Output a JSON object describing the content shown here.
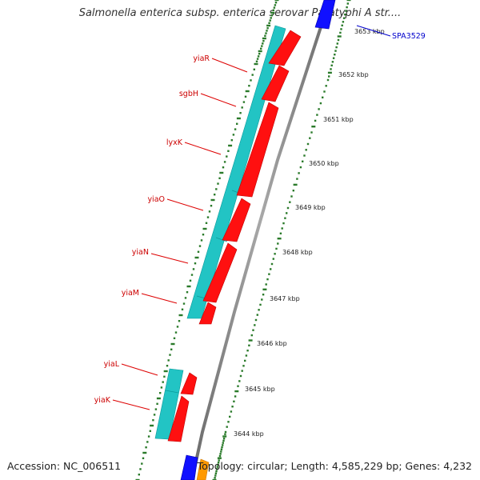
{
  "title": "Salmonella enterica subsp. enterica serovar Paratyphi A str....",
  "footer": {
    "accession": "Accession: NC_006511",
    "topology": "Topology: circular; Length: 4,585,229 bp; Genes: 4,232"
  },
  "colors": {
    "gene_label": "#cc0000",
    "feature_label": "#0000cc",
    "cyan_feature": "#22c4c4",
    "red_feature": "#ff1010",
    "tick_green": "#2a7a2a",
    "backbone": "#8a8a8a"
  },
  "gene_labels": [
    "yiaR",
    "sgbH",
    "lyxK",
    "yiaO",
    "yiaN",
    "yiaM",
    "yiaL",
    "yiaK"
  ],
  "feature_label": "SPA3529",
  "ticks": [
    "3653 kbp",
    "3652 kbp",
    "3651 kbp",
    "3650 kbp",
    "3649 kbp",
    "3648 kbp",
    "3647 kbp",
    "3646 kbp",
    "3645 kbp",
    "3644 kbp"
  ]
}
